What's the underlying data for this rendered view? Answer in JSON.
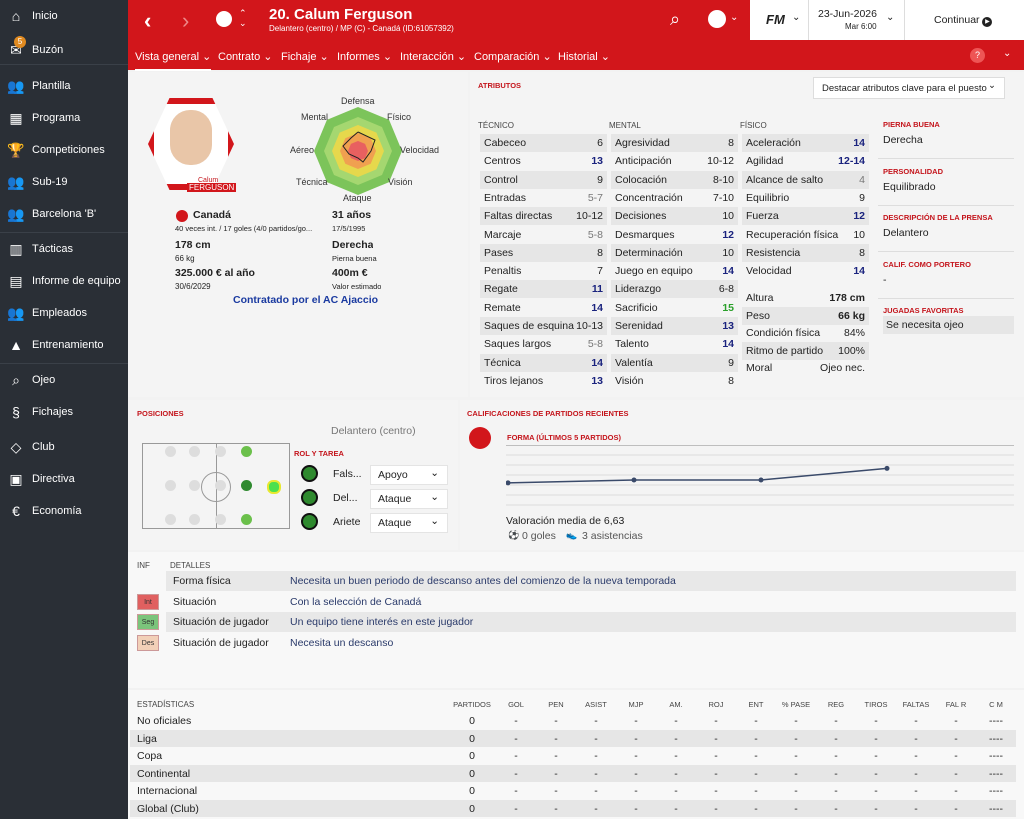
{
  "sidebar": {
    "items": [
      {
        "label": "Inicio",
        "icon": "home-icon",
        "glyph": "⌂"
      },
      {
        "label": "Buzón",
        "icon": "mail-icon",
        "glyph": "✉",
        "badge": "5"
      },
      {
        "label": "Plantilla",
        "icon": "squad-icon",
        "glyph": "👥"
      },
      {
        "label": "Programa",
        "icon": "calendar-icon",
        "glyph": "▦"
      },
      {
        "label": "Competiciones",
        "icon": "trophy-icon",
        "glyph": "🏆"
      },
      {
        "label": "Sub-19",
        "icon": "youth-icon",
        "glyph": "👥"
      },
      {
        "label": "Barcelona 'B'",
        "icon": "reserve-icon",
        "glyph": "👥"
      },
      {
        "label": "Tácticas",
        "icon": "tactics-icon",
        "glyph": "▥"
      },
      {
        "label": "Informe de equipo",
        "icon": "report-icon",
        "glyph": "▤"
      },
      {
        "label": "Empleados",
        "icon": "staff-icon",
        "glyph": "👥"
      },
      {
        "label": "Entrenamiento",
        "icon": "training-icon",
        "glyph": "▲"
      },
      {
        "label": "Ojeo",
        "icon": "search-icon",
        "glyph": "⌕"
      },
      {
        "label": "Fichajes",
        "icon": "transfer-icon",
        "glyph": "§"
      },
      {
        "label": "Club",
        "icon": "shield-icon",
        "glyph": "◇"
      },
      {
        "label": "Directiva",
        "icon": "board-icon",
        "glyph": "▣"
      },
      {
        "label": "Economía",
        "icon": "finance-icon",
        "glyph": "€"
      }
    ]
  },
  "header": {
    "title": "20. Calum Ferguson",
    "subtitle": "Delantero (centro) / MP (C) - Canadá (ID:61057392)",
    "date": "23-Jun-2026",
    "day": "Mar 6:00",
    "continue": "Continuar",
    "logo": "FM"
  },
  "subnav": [
    "Vista general",
    "Contrato",
    "Fichaje",
    "Informes",
    "Interacción",
    "Comparación",
    "Historial"
  ],
  "profile": {
    "card_first": "Calum",
    "card_last": "FERGUSON",
    "nation": "Canadá",
    "caps": "40 veces int. / 17 goles (4/0 partidos/go...",
    "age": "31 años",
    "dob": "17/5/1995",
    "height": "178 cm",
    "weight": "66 kg",
    "foot": "Derecha",
    "foot_label": "Pierna buena",
    "wage": "325.000 € al año",
    "contract_end": "30/6/2029",
    "value": "400m €",
    "value_label": "Valor estimado",
    "contracted": "Contratado por el AC Ajaccio",
    "radar": {
      "Defensa": "Defensa",
      "Fisico": "Físico",
      "Velocidad": "Velocidad",
      "Vision": "Visión",
      "Ataque": "Ataque",
      "Tecnica": "Técnica",
      "Aereo": "Aéreo",
      "Mental": "Mental"
    }
  },
  "attributes": {
    "title": "Atributos",
    "highlight": "Destacar atributos clave para el puesto",
    "technical_title": "Técnico",
    "mental_title": "Mental",
    "physical_title": "Físico",
    "technical": [
      [
        "Cabeceo",
        "6",
        ""
      ],
      [
        "Centros",
        "13",
        "b"
      ],
      [
        "Control",
        "9",
        ""
      ],
      [
        "Entradas",
        "5-7",
        "g"
      ],
      [
        "Faltas directas",
        "10-12",
        ""
      ],
      [
        "Marcaje",
        "5-8",
        "g"
      ],
      [
        "Pases",
        "8",
        ""
      ],
      [
        "Penaltis",
        "7",
        ""
      ],
      [
        "Regate",
        "11",
        "b"
      ],
      [
        "Remate",
        "14",
        "b"
      ],
      [
        "Saques de esquina",
        "10-13",
        ""
      ],
      [
        "Saques largos",
        "5-8",
        "g"
      ],
      [
        "Técnica",
        "14",
        "b"
      ],
      [
        "Tiros lejanos",
        "13",
        "b"
      ]
    ],
    "mental": [
      [
        "Agresividad",
        "8",
        ""
      ],
      [
        "Anticipación",
        "10-12",
        ""
      ],
      [
        "Colocación",
        "8-10",
        ""
      ],
      [
        "Concentración",
        "7-10",
        ""
      ],
      [
        "Decisiones",
        "10",
        ""
      ],
      [
        "Desmarques",
        "12",
        "b"
      ],
      [
        "Determinación",
        "10",
        ""
      ],
      [
        "Juego en equipo",
        "14",
        "b"
      ],
      [
        "Liderazgo",
        "6-8",
        ""
      ],
      [
        "Sacrificio",
        "15",
        "gr"
      ],
      [
        "Serenidad",
        "13",
        "b"
      ],
      [
        "Talento",
        "14",
        "b"
      ],
      [
        "Valentía",
        "9",
        ""
      ],
      [
        "Visión",
        "8",
        ""
      ]
    ],
    "physical": [
      [
        "Aceleración",
        "14",
        "b"
      ],
      [
        "Agilidad",
        "12-14",
        "b"
      ],
      [
        "Alcance de salto",
        "4",
        "g"
      ],
      [
        "Equilibrio",
        "9",
        ""
      ],
      [
        "Fuerza",
        "12",
        "b"
      ],
      [
        "Recuperación física",
        "10",
        ""
      ],
      [
        "Resistencia",
        "8",
        ""
      ],
      [
        "Velocidad",
        "14",
        "b"
      ]
    ],
    "extra": [
      [
        "Altura",
        "178 cm"
      ],
      [
        "Peso",
        "66 kg"
      ],
      [
        "Condición física",
        "84%"
      ],
      [
        "Ritmo de partido",
        "100%"
      ],
      [
        "Moral",
        "Ojeo nec."
      ]
    ]
  },
  "side_info": [
    {
      "label": "Pierna buena",
      "value": "Derecha"
    },
    {
      "label": "Personalidad",
      "value": "Equilibrado"
    },
    {
      "label": "Descripción de la prensa",
      "value": "Delantero"
    },
    {
      "label": "Calif. como portero",
      "value": "-"
    },
    {
      "label": "Jugadas favoritas",
      "value": "Se necesita ojeo"
    }
  ],
  "positions": {
    "title": "Posiciones",
    "main": "Delantero (centro)",
    "role_title": "Rol y tarea",
    "roles": [
      [
        "Fals...",
        "Apoyo"
      ],
      [
        "Del...",
        "Ataque"
      ],
      [
        "Ariete",
        "Ataque"
      ]
    ]
  },
  "ratings": {
    "title": "Calificaciones de partidos recientes",
    "form": "Forma (últimos 5 partidos)",
    "avg": "Valoración media de 6,63",
    "goals": "0 goles",
    "assists": "3 asistencias",
    "points": [
      6.55,
      6.6,
      6.6,
      6.6,
      6.8
    ]
  },
  "info": {
    "col1": "Inf",
    "col2": "Detalles",
    "rows": [
      {
        "tag": "",
        "tagc": "",
        "label": "Forma física",
        "text": "Necesita un buen periodo de descanso antes del comienzo de la nueva temporada"
      },
      {
        "tag": "Int",
        "tagc": "#e06060",
        "label": "Situación",
        "text": "Con la selección de Canadá"
      },
      {
        "tag": "Seg",
        "tagc": "#7bc47b",
        "label": "Situación de jugador",
        "text": "Un equipo tiene interés en este jugador"
      },
      {
        "tag": "Des",
        "tagc": "#f2d0b8",
        "label": "Situación de jugador",
        "text": "Necesita un descanso"
      }
    ]
  },
  "stats": {
    "title": "Estadísticas",
    "cols": [
      "Partidos",
      "Gol",
      "Pen",
      "Asist",
      "MJP",
      "Am.",
      "Roj",
      "Ent",
      "% Pase",
      "Reg",
      "Tiros",
      "Faltas",
      "Fal R",
      "C M"
    ],
    "rows": [
      [
        "No oficiales",
        "0"
      ],
      [
        "Liga",
        "0"
      ],
      [
        "Copa",
        "0"
      ],
      [
        "Continental",
        "0"
      ],
      [
        "Internacional",
        "0"
      ],
      [
        "Global (Club)",
        "0"
      ]
    ],
    "dash": "-",
    "dash4": "----"
  }
}
